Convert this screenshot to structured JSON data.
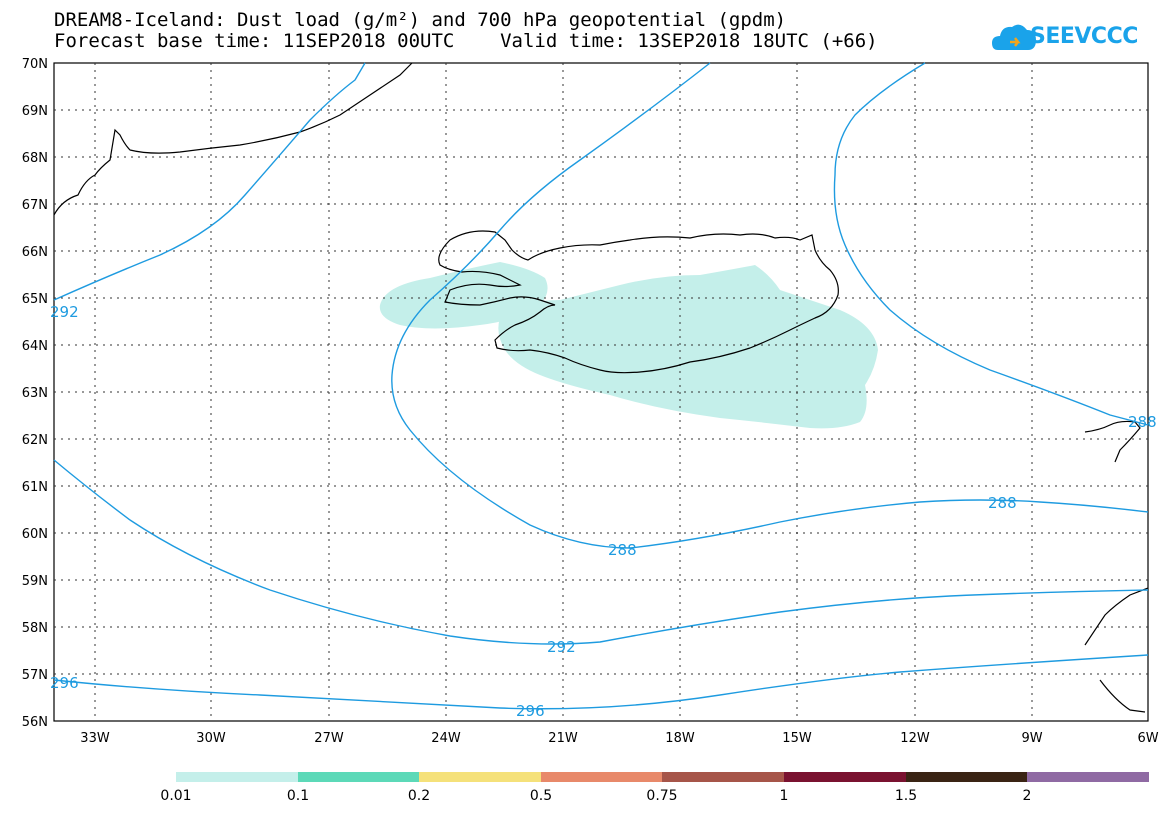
{
  "header": {
    "title_line1": "DREAM8-Iceland: Dust load (g/m²) and 700 hPa geopotential (gpdm)",
    "title_line2": "Forecast base time: 11SEP2018 00UTC    Valid time: 13SEP2018 18UTC (+66)"
  },
  "logo": {
    "text": "SEEVCCC",
    "icon": "cloud-icon",
    "color": "#1aa3ea"
  },
  "axes": {
    "lat_labels": [
      "70N",
      "69N",
      "68N",
      "67N",
      "66N",
      "65N",
      "64N",
      "63N",
      "62N",
      "61N",
      "60N",
      "59N",
      "58N",
      "57N",
      "56N"
    ],
    "lon_labels": [
      "33W",
      "30W",
      "27W",
      "24W",
      "21W",
      "18W",
      "15W",
      "12W",
      "9W",
      "6W"
    ]
  },
  "contours": {
    "color": "#1e9be0",
    "labels": [
      {
        "text": "292",
        "id": "c292-left"
      },
      {
        "text": "288",
        "id": "c288-bottom"
      },
      {
        "text": "288",
        "id": "c288-right"
      },
      {
        "text": "292",
        "id": "c292-bottom"
      },
      {
        "text": "296",
        "id": "c296-left"
      },
      {
        "text": "296",
        "id": "c296-bottom"
      },
      {
        "text": "288",
        "id": "c288-east"
      }
    ]
  },
  "dust_color": "#c4efea",
  "legend": {
    "colors": [
      "#c4efea",
      "#5cd9b8",
      "#f5e17a",
      "#e8896a",
      "#a65549",
      "#7a1230",
      "#3a2414",
      "#8f6aa3"
    ],
    "labels": [
      "0.01",
      "0.1",
      "0.2",
      "0.5",
      "0.75",
      "1",
      "1.5",
      "2"
    ]
  }
}
